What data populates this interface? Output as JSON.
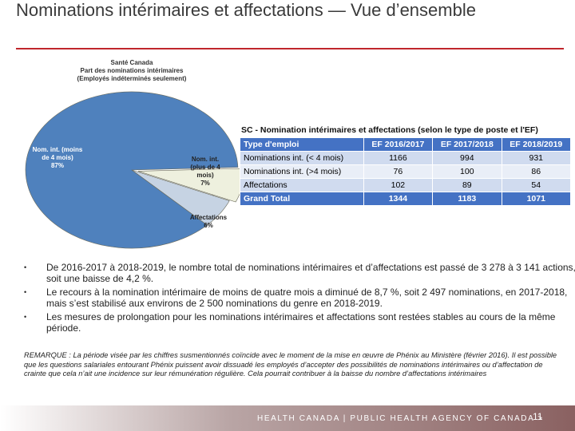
{
  "slide": {
    "title": "Nominations intérimaires et affectations — Vue d’ensemble",
    "bullets": [
      "De 2016-2017 à 2018-2019, le nombre total de nominations intérimaires et d’affectations est passé de 3 278 à 3 141 actions, soit une baisse de 4,2 %.",
      "Le recours à la nomination intérimaire de moins de quatre mois a diminué de 8,7 %, soit 2 497 nominations, en 2017-2018, mais s’est stabilisé aux environs de 2 500 nominations du genre en 2018-2019.",
      "Les mesures de prolongation pour les nominations intérimaires et affectations sont restées stables au cours de la même période."
    ],
    "remark": "REMARQUE : La période visée par les chiffres susmentionnés coïncide avec le moment de la mise en œuvre de Phénix au Ministère (février 2016). Il est possible que les questions salariales entourant Phénix puissent avoir dissuadé les employés d’accepter des possibilités de nominations intérimaires ou d’affectation de crainte que cela n’ait une incidence sur leur rémunération régulière. Cela pourrait contribuer à la baisse du nombre d’affectations intérimaires",
    "footer": "HEALTH CANADA | PUBLIC HEALTH AGENCY OF CANADA >",
    "page_number": "11"
  },
  "table": {
    "title": "SC - Nomination intérimaires et affectations (selon le type de poste et l'EF)",
    "header": [
      "Type d'emploi",
      "EF 2016/2017",
      "EF 2017/2018",
      "EF 2018/2019"
    ],
    "rows": [
      [
        "Nominations int. (< 4 mois)",
        1166,
        994,
        931
      ],
      [
        "Nominations int. (>4 mois)",
        76,
        100,
        86
      ],
      [
        "Affectations",
        102,
        89,
        54
      ],
      [
        "Grand Total",
        1344,
        1183,
        1071
      ]
    ]
  },
  "chart_data": {
    "type": "pie",
    "title": "Santé Canada",
    "subtitle": "Part des nominations intérimaires",
    "note": "(Employés indéterminés seulement)",
    "categories": [
      "Nom. int. (moins de 4 mois)",
      "Nom. int. (plus de 4 mois)",
      "Affectations"
    ],
    "values": [
      87,
      7,
      6
    ],
    "value_labels": [
      "87%",
      "7%",
      "6%"
    ],
    "colors": [
      "#4f81bd",
      "#eef0de",
      "#c6d3e3"
    ]
  }
}
